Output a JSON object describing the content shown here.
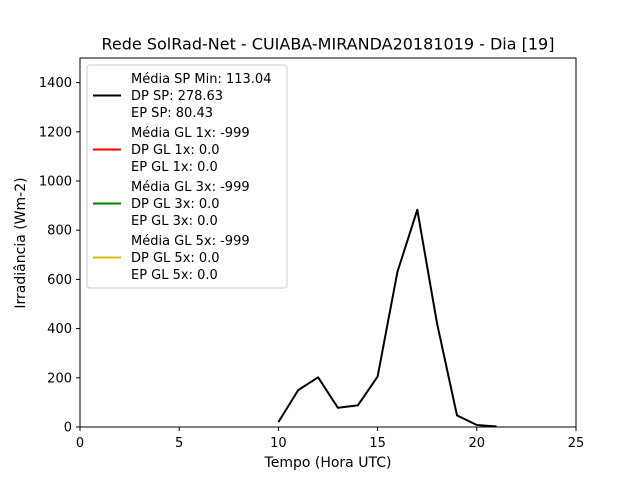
{
  "chart_data": {
    "type": "line",
    "title": "Rede SolRad-Net - CUIABA-MIRANDA20181019 - Dia [19]",
    "xlabel": "Tempo (Hora UTC)",
    "ylabel": "Irradiância (Wm-2)",
    "xlim": [
      0,
      25
    ],
    "ylim": [
      0,
      1500
    ],
    "xticks": [
      0,
      5,
      10,
      15,
      20,
      25
    ],
    "yticks": [
      0,
      200,
      400,
      600,
      800,
      1000,
      1200,
      1400
    ],
    "grid": false,
    "legend_position": "upper-left",
    "series": [
      {
        "color": "#000000",
        "x": [
          10,
          11,
          12,
          13,
          14,
          15,
          16,
          17,
          18,
          19,
          20,
          21
        ],
        "y": [
          20,
          150,
          202,
          78,
          88,
          205,
          630,
          883,
          420,
          47,
          8,
          2
        ]
      }
    ],
    "legend": [
      {
        "color": "#000000",
        "lines": [
          "Média SP Min: 113.04",
          "DP SP: 278.63",
          "EP SP: 80.43"
        ]
      },
      {
        "color": "#ff0000",
        "lines": [
          "Média GL 1x: -999",
          "DP GL 1x: 0.0",
          "EP GL 1x: 0.0"
        ]
      },
      {
        "color": "#008000",
        "lines": [
          "Média GL 3x: -999",
          "DP GL 3x: 0.0",
          "EP GL 3x: 0.0"
        ]
      },
      {
        "color": "#d4c000",
        "lines": [
          "Média GL 5x: -999",
          "DP GL 5x: 0.0",
          "EP GL 5x: 0.0"
        ]
      }
    ]
  }
}
